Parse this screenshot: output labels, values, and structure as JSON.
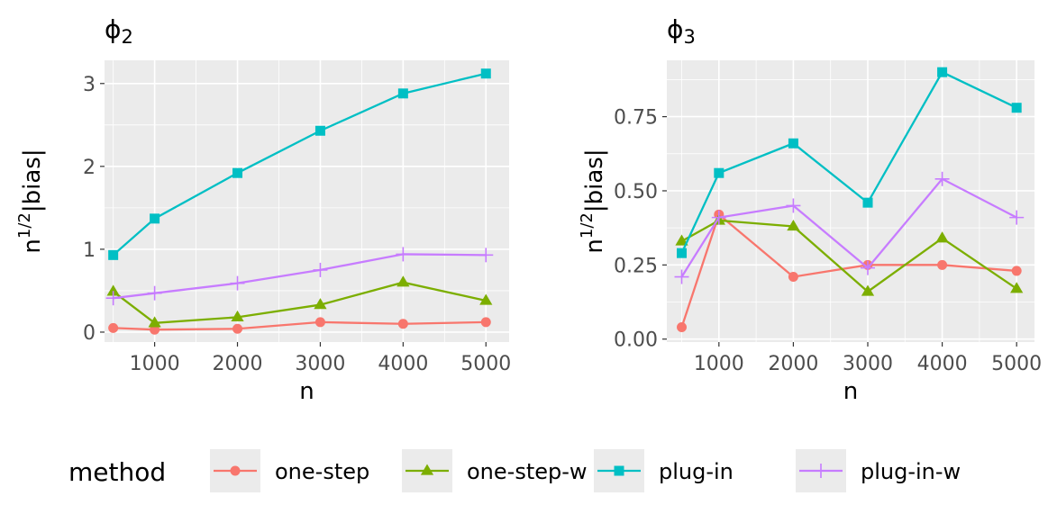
{
  "chart_data": [
    {
      "type": "line",
      "title": "ϕ2",
      "xlabel": "n",
      "ylabel_base": "n",
      "ylabel_exp": "1/2",
      "ylabel_rest": "|bias|",
      "x": [
        500,
        1000,
        2000,
        3000,
        4000,
        5000
      ],
      "xticks": [
        1000,
        2000,
        3000,
        4000,
        5000
      ],
      "xtick_labels": [
        "1000",
        "2000",
        "3000",
        "4000",
        "5000"
      ],
      "xlim": [
        395,
        5280
      ],
      "yticks": [
        0,
        1,
        2,
        3
      ],
      "ytick_labels": [
        "0",
        "1",
        "2",
        "3"
      ],
      "ylim": [
        -0.12,
        3.28
      ],
      "grid": true,
      "series": [
        {
          "name": "one-step",
          "values": [
            0.05,
            0.03,
            0.04,
            0.12,
            0.1,
            0.12
          ]
        },
        {
          "name": "one-step-w",
          "values": [
            0.49,
            0.11,
            0.18,
            0.33,
            0.6,
            0.38
          ]
        },
        {
          "name": "plug-in",
          "values": [
            0.93,
            1.37,
            1.92,
            2.43,
            2.88,
            3.12
          ]
        },
        {
          "name": "plug-in-w",
          "values": [
            0.41,
            0.47,
            0.59,
            0.75,
            0.94,
            0.93
          ]
        }
      ]
    },
    {
      "type": "line",
      "title": "ϕ3",
      "xlabel": "n",
      "ylabel_base": "n",
      "ylabel_exp": "1/2",
      "ylabel_rest": "|bias|",
      "x": [
        500,
        1000,
        2000,
        3000,
        4000,
        5000
      ],
      "xticks": [
        1000,
        2000,
        3000,
        4000,
        5000
      ],
      "xtick_labels": [
        "1000",
        "2000",
        "3000",
        "4000",
        "5000"
      ],
      "xlim": [
        300,
        5240
      ],
      "yticks": [
        0,
        0.25,
        0.5,
        0.75
      ],
      "ytick_labels": [
        "0.00",
        "0.25",
        "0.50",
        "0.75"
      ],
      "ylim": [
        -0.01,
        0.94
      ],
      "grid": true,
      "series": [
        {
          "name": "one-step",
          "values": [
            0.04,
            0.42,
            0.21,
            0.25,
            0.25,
            0.23
          ]
        },
        {
          "name": "one-step-w",
          "values": [
            0.33,
            0.4,
            0.38,
            0.16,
            0.34,
            0.17
          ]
        },
        {
          "name": "plug-in",
          "values": [
            0.29,
            0.56,
            0.66,
            0.46,
            0.9,
            0.78
          ]
        },
        {
          "name": "plug-in-w",
          "values": [
            0.21,
            0.41,
            0.45,
            0.24,
            0.54,
            0.41
          ]
        }
      ]
    }
  ],
  "legend": {
    "title": "method",
    "placement": "bottom",
    "items": [
      {
        "label": "one-step",
        "color": "#F8766D",
        "shape": "circle"
      },
      {
        "label": "one-step-w",
        "color": "#7CAE00",
        "shape": "triangle"
      },
      {
        "label": "plug-in",
        "color": "#00BFC4",
        "shape": "square"
      },
      {
        "label": "plug-in-w",
        "color": "#C77CFF",
        "shape": "plus"
      }
    ]
  },
  "colors": {
    "panel_background": "#EBEBEB",
    "grid_major": "#FFFFFF",
    "axis_text": "#4D4D4D",
    "axis_title": "#000000"
  }
}
